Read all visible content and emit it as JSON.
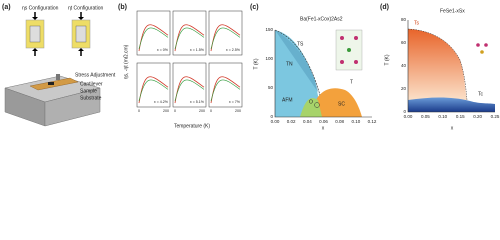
{
  "panels": [
    {
      "label": "(a)",
      "config_left": "ηs Configuration",
      "config_right": "ηt Configuration",
      "callouts": [
        "Stress Adjustment",
        "Cantilever",
        "Sample",
        "Substrate"
      ]
    },
    {
      "label": "(b)",
      "y_axis": "ηs, -ηt (mΩ.cm)",
      "x_axis": "Temperature (K)",
      "subplots": [
        "x = 0%",
        "x = 1.5%",
        "x = 2.5%",
        "x = 4.2%",
        "x = 5.1%",
        "x = 7%"
      ],
      "x_ticks": [
        "0",
        "200"
      ]
    },
    {
      "label": "(c)",
      "formula": "Ba(Fe1-xCox)2As2",
      "y_axis": "T (K)",
      "x_axis": "x",
      "x_ticks": [
        "0.00",
        "0.02",
        "0.04",
        "0.06",
        "0.08",
        "0.10",
        "0.12"
      ],
      "y_ticks": [
        "0",
        "50",
        "100",
        "150"
      ],
      "regions": [
        "TS",
        "TN",
        "AFM",
        "O",
        "SC",
        "T"
      ]
    },
    {
      "label": "(d)",
      "formula": "FeSe1-xSx",
      "y_axis": "T (K)",
      "x_axis": "x",
      "x_ticks": [
        "0.00",
        "0.05",
        "0.10",
        "0.15",
        "0.20",
        "0.25"
      ],
      "y_ticks": [
        "0",
        "20",
        "40",
        "60",
        "80"
      ],
      "curves": [
        "Ts",
        "Tc"
      ]
    }
  ]
}
